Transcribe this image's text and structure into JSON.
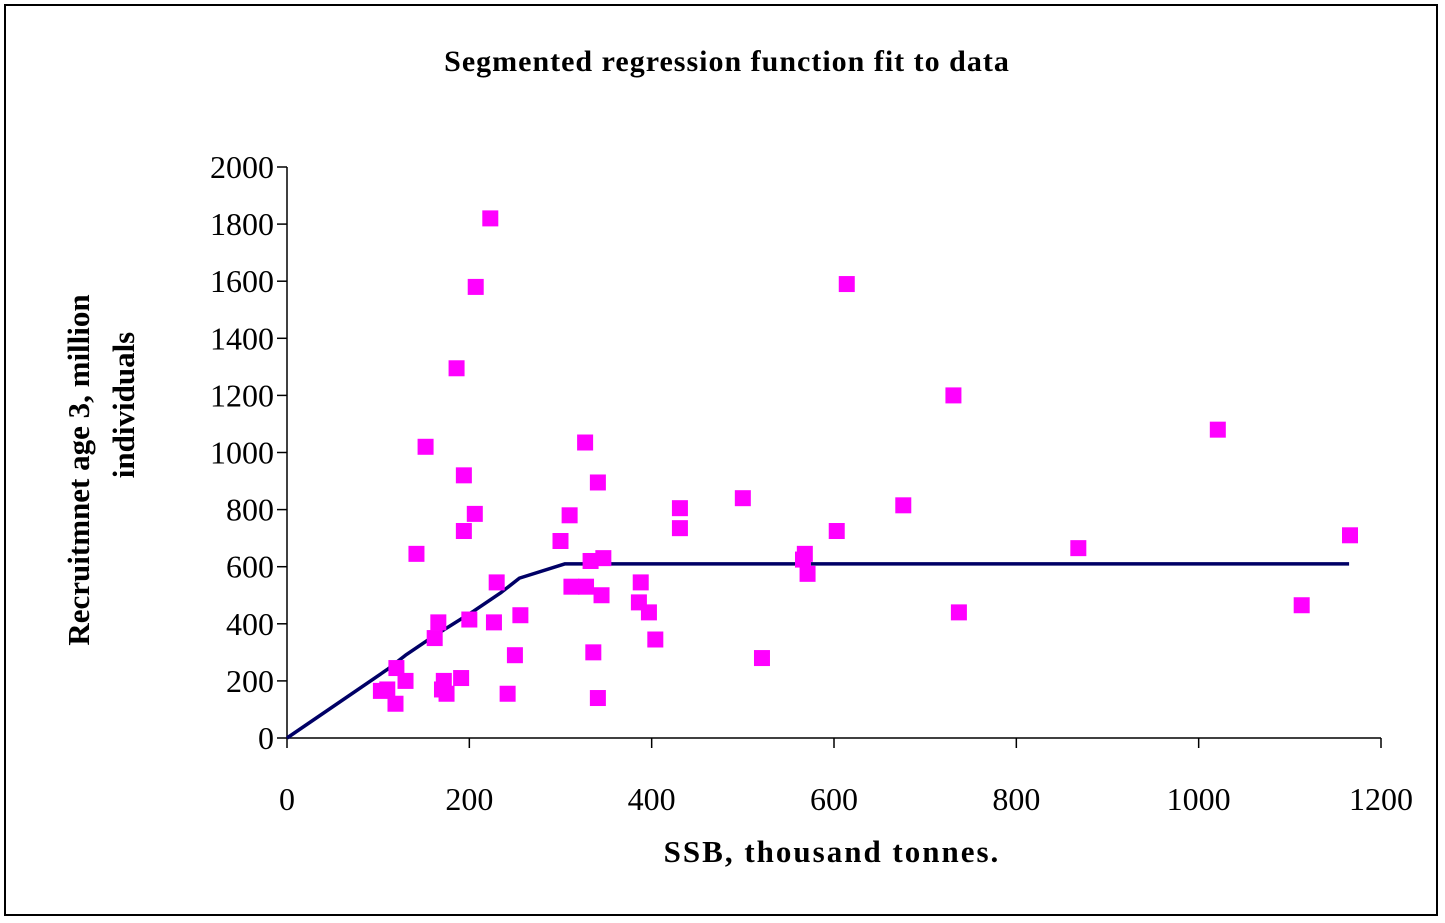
{
  "chart_data": {
    "type": "scatter",
    "title": "Segmented regression function fit to data",
    "xlabel": "SSB, thousand tonnes.",
    "ylabel_lines": [
      "Recruitmnet age 3, million",
      "individuals"
    ],
    "xlim": [
      0,
      1200
    ],
    "ylim": [
      0,
      2000
    ],
    "x_ticks": [
      0,
      200,
      400,
      600,
      800,
      1000,
      1200
    ],
    "y_ticks": [
      0,
      200,
      400,
      600,
      800,
      1000,
      1200,
      1400,
      1600,
      1800,
      2000
    ],
    "grid": false,
    "legend": "none",
    "series": [
      {
        "type": "scatter",
        "color": "#ff00ff",
        "marker": "square",
        "points": [
          [
            103,
            165
          ],
          [
            110,
            170
          ],
          [
            119,
            120
          ],
          [
            120,
            245
          ],
          [
            130,
            200
          ],
          [
            142,
            645
          ],
          [
            152,
            1020
          ],
          [
            162,
            350
          ],
          [
            166,
            405
          ],
          [
            170,
            170
          ],
          [
            172,
            200
          ],
          [
            175,
            155
          ],
          [
            186,
            1295
          ],
          [
            191,
            210
          ],
          [
            194,
            920
          ],
          [
            194,
            725
          ],
          [
            200,
            415
          ],
          [
            206,
            785
          ],
          [
            207,
            1580
          ],
          [
            223,
            1820
          ],
          [
            227,
            405
          ],
          [
            230,
            545
          ],
          [
            242,
            155
          ],
          [
            250,
            290
          ],
          [
            256,
            430
          ],
          [
            300,
            690
          ],
          [
            310,
            780
          ],
          [
            312,
            530
          ],
          [
            327,
            1035
          ],
          [
            328,
            530
          ],
          [
            333,
            620
          ],
          [
            336,
            300
          ],
          [
            341,
            895
          ],
          [
            341,
            140
          ],
          [
            345,
            500
          ],
          [
            347,
            630
          ],
          [
            386,
            475
          ],
          [
            388,
            545
          ],
          [
            397,
            440
          ],
          [
            404,
            345
          ],
          [
            431,
            805
          ],
          [
            431,
            735
          ],
          [
            500,
            840
          ],
          [
            521,
            280
          ],
          [
            566,
            625
          ],
          [
            568,
            645
          ],
          [
            571,
            575
          ],
          [
            603,
            725
          ],
          [
            614,
            1590
          ],
          [
            676,
            815
          ],
          [
            731,
            1200
          ],
          [
            737,
            440
          ],
          [
            868,
            665
          ],
          [
            1021,
            1080
          ],
          [
            1113,
            465
          ],
          [
            1166,
            710
          ]
        ]
      },
      {
        "type": "line",
        "color": "#000066",
        "points": [
          [
            0,
            0
          ],
          [
            110,
            240
          ],
          [
            130,
            290
          ],
          [
            160,
            355
          ],
          [
            175,
            385
          ],
          [
            205,
            445
          ],
          [
            235,
            510
          ],
          [
            255,
            560
          ],
          [
            305,
            610
          ],
          [
            1165,
            610
          ]
        ]
      }
    ]
  }
}
